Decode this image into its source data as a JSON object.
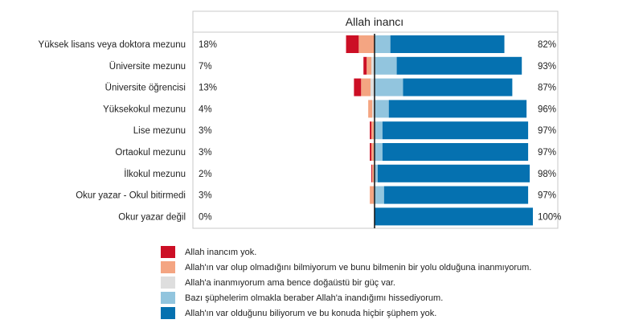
{
  "chart_data": {
    "type": "bar",
    "title": "Allah inancı",
    "categories": [
      "Yüksek lisans veya doktora mezunu",
      "Üniversite mezunu",
      "Üniversite öğrencisi",
      "Yüksekokul mezunu",
      "Lise mezunu",
      "Ortaokul mezunu",
      "İlkokul mezunu",
      "Okur yazar - Okul bitirmedi",
      "Okur yazar değil"
    ],
    "left_totals": [
      "18%",
      "7%",
      "13%",
      "4%",
      "3%",
      "3%",
      "2%",
      "3%",
      "0%"
    ],
    "right_totals": [
      "82%",
      "93%",
      "87%",
      "96%",
      "97%",
      "97%",
      "98%",
      "97%",
      "100%"
    ],
    "series": [
      {
        "name": "Allah inancım yok.",
        "color": "#cc0f25",
        "side": "left",
        "values": [
          8,
          2,
          4.5,
          0,
          1,
          1,
          0.5,
          0,
          0
        ]
      },
      {
        "name": "Allah'ın var olup olmadığını bilmiyorum ve bunu bilmenin bir yolu olduğuna inanmıyorum.",
        "color": "#f4a582",
        "side": "left",
        "values": [
          10,
          3,
          6,
          2.5,
          1.5,
          1.5,
          1,
          2.5,
          0
        ]
      },
      {
        "name": "Allah'a inanmıyorum ama bence doğaüstü bir güç var.",
        "color": "#dedede",
        "side": "left",
        "values": [
          0,
          2,
          2.5,
          1.5,
          0.5,
          0.5,
          0.5,
          0.5,
          0
        ]
      },
      {
        "name": "Bazı şüphelerim olmakla beraber Allah'a inandığımı hissediyorum.",
        "color": "#92c5de",
        "side": "right",
        "values": [
          10,
          14,
          18,
          9,
          5,
          5,
          2,
          6,
          0
        ]
      },
      {
        "name": "Allah'ın var olduğunu biliyorum ve bu konuda hiçbir şüphem yok.",
        "color": "#0571b0",
        "side": "right",
        "values": [
          72,
          79,
          69,
          87,
          92,
          92,
          96,
          91,
          100
        ]
      }
    ],
    "xlim": [
      -25,
      100
    ],
    "grid": false,
    "legend": "bottom"
  }
}
